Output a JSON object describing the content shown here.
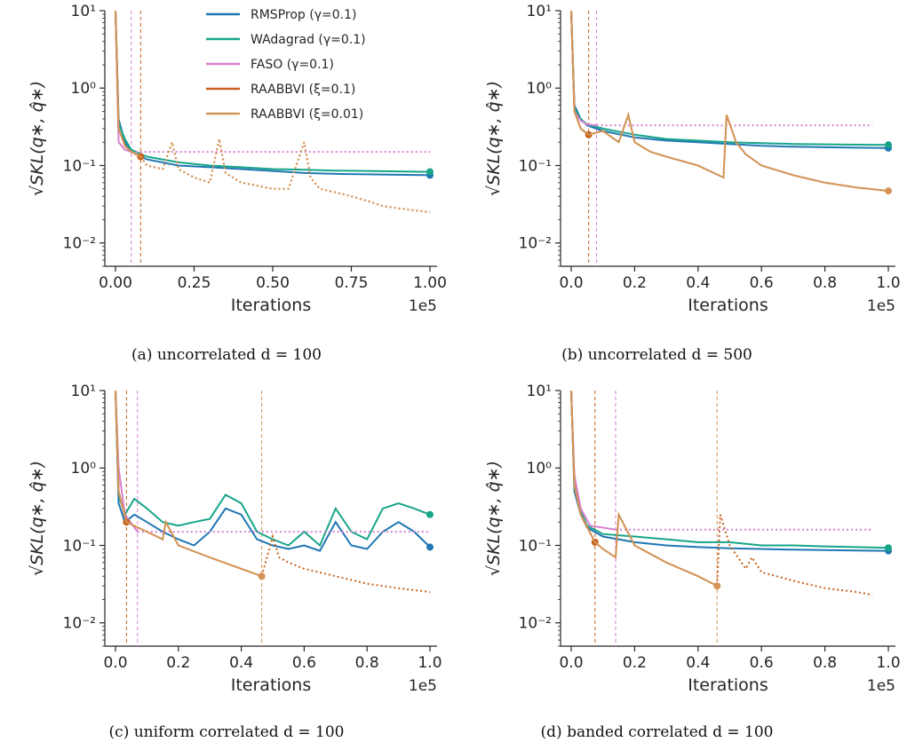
{
  "legend": [
    {
      "name": "RMSProp (γ=0.1)",
      "color": "#1f77b4"
    },
    {
      "name": "WAdagrad (γ=0.1)",
      "color": "#17a589"
    },
    {
      "name": "FASO (γ=0.1)",
      "color": "#d580d0"
    },
    {
      "name": "RAABBVI (ξ=0.1)",
      "color": "#c8621c"
    },
    {
      "name": "RAABBVI (ξ=0.01)",
      "color": "#d39458"
    }
  ],
  "chart_data": [
    {
      "type": "line",
      "caption": "(a) uncorrelated d = 100",
      "xlabel": "Iterations",
      "ylabel": "√SKL(q∗, q̂∗)",
      "x_multiplier": "1e5",
      "y_scale": "log",
      "ylim": [
        0.005,
        10
      ],
      "xlim": [
        0,
        1.0
      ],
      "xticks": [
        "0.00",
        "0.25",
        "0.50",
        "0.75",
        "1.00"
      ],
      "xtick_values": [
        0,
        0.25,
        0.5,
        0.75,
        1.0
      ],
      "yticks": [
        "10⁻²",
        "10⁻¹",
        "10⁰",
        "10¹"
      ],
      "ytick_values": [
        0.01,
        0.1,
        1,
        10
      ],
      "vlines": [
        {
          "x": 0.05,
          "series": "FASO"
        },
        {
          "x": 0.08,
          "series": "RAABBVI ξ=0.1"
        }
      ],
      "series": [
        {
          "name": "RMSProp (γ=0.1)",
          "x": [
            0,
            0.01,
            0.03,
            0.05,
            0.1,
            0.2,
            0.3,
            0.4,
            0.5,
            0.6,
            0.7,
            0.8,
            0.9,
            1.0
          ],
          "y": [
            10,
            0.4,
            0.2,
            0.15,
            0.12,
            0.1,
            0.095,
            0.09,
            0.085,
            0.08,
            0.078,
            0.077,
            0.076,
            0.075
          ],
          "end_marker": true
        },
        {
          "name": "WAdagrad (γ=0.1)",
          "x": [
            0,
            0.01,
            0.03,
            0.05,
            0.1,
            0.2,
            0.3,
            0.4,
            0.5,
            0.6,
            0.7,
            0.8,
            0.9,
            1.0
          ],
          "y": [
            10,
            0.35,
            0.22,
            0.16,
            0.13,
            0.11,
            0.1,
            0.095,
            0.09,
            0.088,
            0.086,
            0.085,
            0.084,
            0.083
          ],
          "end_marker": true
        },
        {
          "name": "FASO (γ=0.1)",
          "x": [
            0,
            0.01,
            0.03,
            0.05,
            0.1,
            0.5,
            1.0
          ],
          "y": [
            10,
            0.2,
            0.16,
            0.15,
            0.15,
            0.15,
            0.15
          ],
          "style": "dotted-after",
          "dot_from": 0.05
        },
        {
          "name": "RAABBVI (ξ=0.1)",
          "x": [
            0,
            0.01,
            0.03,
            0.05,
            0.08,
            0.1,
            0.15,
            0.18,
            0.2,
            0.25,
            0.3,
            0.33,
            0.35,
            0.4,
            0.45,
            0.5,
            0.55,
            0.6,
            0.62,
            0.65,
            0.7,
            0.75,
            0.8,
            0.85,
            0.9,
            1.0
          ],
          "y": [
            10,
            0.3,
            0.18,
            0.15,
            0.13,
            0.1,
            0.09,
            0.2,
            0.09,
            0.07,
            0.06,
            0.22,
            0.08,
            0.06,
            0.055,
            0.05,
            0.05,
            0.2,
            0.07,
            0.05,
            0.045,
            0.04,
            0.035,
            0.03,
            0.028,
            0.025
          ],
          "style": "dotted-after",
          "dot_from": 0.08
        },
        {
          "name": "RAABBVI (ξ=0.01)",
          "x": [
            0,
            0.01,
            0.03,
            0.05,
            0.08,
            0.1,
            0.15,
            0.18,
            0.2,
            0.25,
            0.3,
            0.33,
            0.35,
            0.4,
            0.45,
            0.5,
            0.55,
            0.6,
            0.62,
            0.65,
            0.7,
            0.75,
            0.8,
            0.85,
            0.9,
            1.0
          ],
          "y": [
            10,
            0.3,
            0.18,
            0.15,
            0.13,
            0.1,
            0.09,
            0.2,
            0.09,
            0.07,
            0.06,
            0.22,
            0.08,
            0.06,
            0.055,
            0.05,
            0.05,
            0.2,
            0.07,
            0.05,
            0.045,
            0.04,
            0.035,
            0.03,
            0.028,
            0.025
          ],
          "style": "dotted-after",
          "dot_from": 0.08
        }
      ]
    },
    {
      "type": "line",
      "caption": "(b) uncorrelated d = 500",
      "xlabel": "Iterations",
      "ylabel": "√SKL(q∗, q̂∗)",
      "x_multiplier": "1e5",
      "y_scale": "log",
      "ylim": [
        0.005,
        10
      ],
      "xlim": [
        0,
        1.0
      ],
      "xticks": [
        "0.0",
        "0.2",
        "0.4",
        "0.6",
        "0.8",
        "1.0"
      ],
      "xtick_values": [
        0,
        0.2,
        0.4,
        0.6,
        0.8,
        1.0
      ],
      "yticks": [
        "10⁻²",
        "10⁻¹",
        "10⁰",
        "10¹"
      ],
      "ytick_values": [
        0.01,
        0.1,
        1,
        10
      ],
      "vlines": [
        {
          "x": 0.055,
          "series": "RAABBVI ξ=0.1"
        },
        {
          "x": 0.08,
          "series": "FASO"
        }
      ],
      "series": [
        {
          "name": "RMSProp (γ=0.1)",
          "x": [
            0,
            0.01,
            0.03,
            0.05,
            0.1,
            0.2,
            0.3,
            0.4,
            0.5,
            0.6,
            0.7,
            0.8,
            0.9,
            1.0
          ],
          "y": [
            10,
            0.6,
            0.4,
            0.33,
            0.28,
            0.23,
            0.21,
            0.2,
            0.19,
            0.18,
            0.175,
            0.172,
            0.17,
            0.168
          ],
          "end_marker": true
        },
        {
          "name": "WAdagrad (γ=0.1)",
          "x": [
            0,
            0.01,
            0.03,
            0.05,
            0.1,
            0.2,
            0.3,
            0.4,
            0.5,
            0.6,
            0.7,
            0.8,
            0.9,
            1.0
          ],
          "y": [
            10,
            0.55,
            0.4,
            0.34,
            0.3,
            0.25,
            0.22,
            0.21,
            0.2,
            0.195,
            0.19,
            0.188,
            0.186,
            0.185
          ],
          "end_marker": true
        },
        {
          "name": "FASO (γ=0.1)",
          "x": [
            0,
            0.01,
            0.03,
            0.05,
            0.08,
            0.5,
            0.95
          ],
          "y": [
            10,
            0.5,
            0.38,
            0.34,
            0.33,
            0.33,
            0.33
          ],
          "style": "dotted-after",
          "dot_from": 0.08
        },
        {
          "name": "RAABBVI (ξ=0.1)",
          "x": [
            0,
            0.01,
            0.03,
            0.055,
            0.1,
            0.15,
            0.18,
            0.2,
            0.25,
            0.3,
            0.4,
            0.48,
            0.49,
            0.52,
            0.55,
            0.6,
            0.7,
            0.8,
            0.9,
            1.0
          ],
          "y": [
            10,
            0.5,
            0.3,
            0.25,
            0.28,
            0.2,
            0.45,
            0.2,
            0.15,
            0.13,
            0.1,
            0.07,
            0.45,
            0.2,
            0.14,
            0.1,
            0.075,
            0.06,
            0.052,
            0.047
          ],
          "style": "dotted-after",
          "dot_from": 0.055
        },
        {
          "name": "RAABBVI (ξ=0.01)",
          "x": [
            0,
            0.01,
            0.03,
            0.055,
            0.1,
            0.15,
            0.18,
            0.2,
            0.25,
            0.3,
            0.4,
            0.48,
            0.49,
            0.52,
            0.55,
            0.6,
            0.7,
            0.8,
            0.9,
            1.0
          ],
          "y": [
            10,
            0.5,
            0.3,
            0.25,
            0.28,
            0.2,
            0.45,
            0.2,
            0.15,
            0.13,
            0.1,
            0.07,
            0.45,
            0.2,
            0.14,
            0.1,
            0.075,
            0.06,
            0.052,
            0.047
          ],
          "end_marker": true
        }
      ]
    },
    {
      "type": "line",
      "caption": "(c) uniform correlated d = 100",
      "xlabel": "Iterations",
      "ylabel": "√SKL(q∗, q̂∗)",
      "x_multiplier": "1e5",
      "y_scale": "log",
      "ylim": [
        0.005,
        10
      ],
      "xlim": [
        0,
        1.0
      ],
      "xticks": [
        "0.0",
        "0.2",
        "0.4",
        "0.6",
        "0.8",
        "1.0"
      ],
      "xtick_values": [
        0,
        0.2,
        0.4,
        0.6,
        0.8,
        1.0
      ],
      "yticks": [
        "10⁻²",
        "10⁻¹",
        "10⁰",
        "10¹"
      ],
      "ytick_values": [
        0.01,
        0.1,
        1,
        10
      ],
      "vlines": [
        {
          "x": 0.035,
          "series": "RAABBVI ξ=0.1"
        },
        {
          "x": 0.07,
          "series": "FASO"
        },
        {
          "x": 0.465,
          "series": "RAABBVI ξ=0.01"
        }
      ],
      "series": [
        {
          "name": "RMSProp (γ=0.1)",
          "x": [
            0,
            0.01,
            0.03,
            0.06,
            0.1,
            0.15,
            0.2,
            0.25,
            0.3,
            0.35,
            0.4,
            0.45,
            0.5,
            0.55,
            0.6,
            0.65,
            0.7,
            0.75,
            0.8,
            0.85,
            0.9,
            0.95,
            1.0
          ],
          "y": [
            10,
            0.35,
            0.2,
            0.25,
            0.2,
            0.15,
            0.12,
            0.1,
            0.15,
            0.3,
            0.25,
            0.12,
            0.1,
            0.09,
            0.1,
            0.085,
            0.2,
            0.1,
            0.09,
            0.15,
            0.2,
            0.15,
            0.095
          ],
          "end_marker": true
        },
        {
          "name": "WAdagrad (γ=0.1)",
          "x": [
            0,
            0.01,
            0.03,
            0.06,
            0.1,
            0.15,
            0.2,
            0.25,
            0.3,
            0.35,
            0.4,
            0.45,
            0.5,
            0.55,
            0.6,
            0.65,
            0.7,
            0.75,
            0.8,
            0.85,
            0.9,
            0.95,
            1.0
          ],
          "y": [
            10,
            0.45,
            0.25,
            0.4,
            0.3,
            0.2,
            0.18,
            0.2,
            0.22,
            0.45,
            0.35,
            0.15,
            0.12,
            0.1,
            0.15,
            0.1,
            0.3,
            0.15,
            0.12,
            0.3,
            0.35,
            0.3,
            0.25
          ],
          "end_marker": true
        },
        {
          "name": "FASO (γ=0.1)",
          "x": [
            0,
            0.01,
            0.03,
            0.07,
            0.3,
            0.6,
            1.0
          ],
          "y": [
            10,
            1.0,
            0.25,
            0.15,
            0.15,
            0.15,
            0.15
          ],
          "style": "dotted-after",
          "dot_from": 0.07
        },
        {
          "name": "RAABBVI (ξ=0.1)",
          "x": [
            0,
            0.01,
            0.035,
            0.1,
            0.15,
            0.16,
            0.2,
            0.3,
            0.4,
            0.465,
            0.5,
            0.52,
            0.55,
            0.6,
            0.7,
            0.8,
            0.9,
            1.0
          ],
          "y": [
            10,
            0.5,
            0.2,
            0.15,
            0.12,
            0.2,
            0.1,
            0.07,
            0.05,
            0.04,
            0.13,
            0.07,
            0.06,
            0.05,
            0.04,
            0.032,
            0.028,
            0.025
          ],
          "style": "dotted-after",
          "dot_from": 0.035
        },
        {
          "name": "RAABBVI (ξ=0.01)",
          "x": [
            0,
            0.01,
            0.035,
            0.1,
            0.15,
            0.16,
            0.2,
            0.3,
            0.4,
            0.465
          ],
          "y": [
            10,
            0.5,
            0.2,
            0.15,
            0.12,
            0.2,
            0.1,
            0.07,
            0.05,
            0.04
          ],
          "end_marker": true
        }
      ]
    },
    {
      "type": "line",
      "caption": "(d) banded correlated d = 100",
      "xlabel": "Iterations",
      "ylabel": "√SKL(q∗, q̂∗)",
      "x_multiplier": "1e5",
      "y_scale": "log",
      "ylim": [
        0.005,
        10
      ],
      "xlim": [
        0,
        1.0
      ],
      "xticks": [
        "0.0",
        "0.2",
        "0.4",
        "0.6",
        "0.8",
        "1.0"
      ],
      "xtick_values": [
        0,
        0.2,
        0.4,
        0.6,
        0.8,
        1.0
      ],
      "yticks": [
        "10⁻²",
        "10⁻¹",
        "10⁰",
        "10¹"
      ],
      "ytick_values": [
        0.01,
        0.1,
        1,
        10
      ],
      "vlines": [
        {
          "x": 0.075,
          "series": "RAABBVI ξ=0.1"
        },
        {
          "x": 0.14,
          "series": "FASO"
        },
        {
          "x": 0.46,
          "series": "RAABBVI ξ=0.01"
        }
      ],
      "series": [
        {
          "name": "RMSProp (γ=0.1)",
          "x": [
            0,
            0.01,
            0.03,
            0.05,
            0.1,
            0.2,
            0.3,
            0.4,
            0.5,
            0.6,
            0.7,
            0.8,
            0.9,
            1.0
          ],
          "y": [
            10,
            0.5,
            0.25,
            0.17,
            0.13,
            0.11,
            0.1,
            0.095,
            0.092,
            0.09,
            0.088,
            0.087,
            0.086,
            0.085
          ],
          "end_marker": true
        },
        {
          "name": "WAdagrad (γ=0.1)",
          "x": [
            0,
            0.01,
            0.03,
            0.05,
            0.1,
            0.2,
            0.3,
            0.4,
            0.5,
            0.6,
            0.7,
            0.8,
            0.9,
            1.0
          ],
          "y": [
            10,
            0.55,
            0.28,
            0.18,
            0.14,
            0.13,
            0.12,
            0.11,
            0.11,
            0.1,
            0.1,
            0.097,
            0.095,
            0.093
          ],
          "end_marker": true
        },
        {
          "name": "FASO (γ=0.1)",
          "x": [
            0,
            0.01,
            0.03,
            0.06,
            0.14,
            0.5,
            0.95
          ],
          "y": [
            10,
            0.8,
            0.3,
            0.18,
            0.16,
            0.16,
            0.16
          ],
          "style": "dotted-after",
          "dot_from": 0.14
        },
        {
          "name": "RAABBVI (ξ=0.1)",
          "x": [
            0,
            0.01,
            0.03,
            0.075,
            0.1,
            0.14,
            0.15,
            0.2,
            0.3,
            0.4,
            0.46,
            0.47,
            0.5,
            0.55,
            0.57,
            0.6,
            0.7,
            0.8,
            0.9,
            0.95
          ],
          "y": [
            10,
            0.6,
            0.25,
            0.11,
            0.09,
            0.07,
            0.25,
            0.1,
            0.06,
            0.04,
            0.03,
            0.25,
            0.1,
            0.05,
            0.07,
            0.045,
            0.035,
            0.028,
            0.025,
            0.023
          ],
          "style": "dotted-after",
          "dot_from": 0.075
        },
        {
          "name": "RAABBVI (ξ=0.01)",
          "x": [
            0,
            0.01,
            0.03,
            0.075,
            0.1,
            0.14,
            0.15,
            0.2,
            0.3,
            0.4,
            0.46
          ],
          "y": [
            10,
            0.6,
            0.25,
            0.11,
            0.09,
            0.07,
            0.25,
            0.1,
            0.06,
            0.04,
            0.03
          ],
          "end_marker": true
        }
      ]
    }
  ]
}
